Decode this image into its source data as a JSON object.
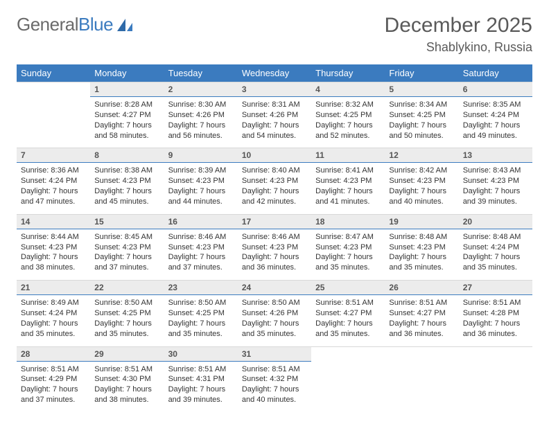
{
  "brand": {
    "part1": "General",
    "part2": "Blue"
  },
  "title": {
    "month": "December 2025",
    "location": "Shablykino, Russia"
  },
  "colors": {
    "header_bg": "#3b7bbf",
    "header_text": "#ffffff",
    "daynum_bg": "#ececec",
    "daynum_border": "#3b7bbf",
    "page_bg": "#ffffff",
    "text": "#333333"
  },
  "dayNames": [
    "Sunday",
    "Monday",
    "Tuesday",
    "Wednesday",
    "Thursday",
    "Friday",
    "Saturday"
  ],
  "startOffset": 1,
  "daysInMonth": 31,
  "days": {
    "1": {
      "sunrise": "8:28 AM",
      "sunset": "4:27 PM",
      "daylight": "7 hours and 58 minutes."
    },
    "2": {
      "sunrise": "8:30 AM",
      "sunset": "4:26 PM",
      "daylight": "7 hours and 56 minutes."
    },
    "3": {
      "sunrise": "8:31 AM",
      "sunset": "4:26 PM",
      "daylight": "7 hours and 54 minutes."
    },
    "4": {
      "sunrise": "8:32 AM",
      "sunset": "4:25 PM",
      "daylight": "7 hours and 52 minutes."
    },
    "5": {
      "sunrise": "8:34 AM",
      "sunset": "4:25 PM",
      "daylight": "7 hours and 50 minutes."
    },
    "6": {
      "sunrise": "8:35 AM",
      "sunset": "4:24 PM",
      "daylight": "7 hours and 49 minutes."
    },
    "7": {
      "sunrise": "8:36 AM",
      "sunset": "4:24 PM",
      "daylight": "7 hours and 47 minutes."
    },
    "8": {
      "sunrise": "8:38 AM",
      "sunset": "4:23 PM",
      "daylight": "7 hours and 45 minutes."
    },
    "9": {
      "sunrise": "8:39 AM",
      "sunset": "4:23 PM",
      "daylight": "7 hours and 44 minutes."
    },
    "10": {
      "sunrise": "8:40 AM",
      "sunset": "4:23 PM",
      "daylight": "7 hours and 42 minutes."
    },
    "11": {
      "sunrise": "8:41 AM",
      "sunset": "4:23 PM",
      "daylight": "7 hours and 41 minutes."
    },
    "12": {
      "sunrise": "8:42 AM",
      "sunset": "4:23 PM",
      "daylight": "7 hours and 40 minutes."
    },
    "13": {
      "sunrise": "8:43 AM",
      "sunset": "4:23 PM",
      "daylight": "7 hours and 39 minutes."
    },
    "14": {
      "sunrise": "8:44 AM",
      "sunset": "4:23 PM",
      "daylight": "7 hours and 38 minutes."
    },
    "15": {
      "sunrise": "8:45 AM",
      "sunset": "4:23 PM",
      "daylight": "7 hours and 37 minutes."
    },
    "16": {
      "sunrise": "8:46 AM",
      "sunset": "4:23 PM",
      "daylight": "7 hours and 37 minutes."
    },
    "17": {
      "sunrise": "8:46 AM",
      "sunset": "4:23 PM",
      "daylight": "7 hours and 36 minutes."
    },
    "18": {
      "sunrise": "8:47 AM",
      "sunset": "4:23 PM",
      "daylight": "7 hours and 35 minutes."
    },
    "19": {
      "sunrise": "8:48 AM",
      "sunset": "4:23 PM",
      "daylight": "7 hours and 35 minutes."
    },
    "20": {
      "sunrise": "8:48 AM",
      "sunset": "4:24 PM",
      "daylight": "7 hours and 35 minutes."
    },
    "21": {
      "sunrise": "8:49 AM",
      "sunset": "4:24 PM",
      "daylight": "7 hours and 35 minutes."
    },
    "22": {
      "sunrise": "8:50 AM",
      "sunset": "4:25 PM",
      "daylight": "7 hours and 35 minutes."
    },
    "23": {
      "sunrise": "8:50 AM",
      "sunset": "4:25 PM",
      "daylight": "7 hours and 35 minutes."
    },
    "24": {
      "sunrise": "8:50 AM",
      "sunset": "4:26 PM",
      "daylight": "7 hours and 35 minutes."
    },
    "25": {
      "sunrise": "8:51 AM",
      "sunset": "4:27 PM",
      "daylight": "7 hours and 35 minutes."
    },
    "26": {
      "sunrise": "8:51 AM",
      "sunset": "4:27 PM",
      "daylight": "7 hours and 36 minutes."
    },
    "27": {
      "sunrise": "8:51 AM",
      "sunset": "4:28 PM",
      "daylight": "7 hours and 36 minutes."
    },
    "28": {
      "sunrise": "8:51 AM",
      "sunset": "4:29 PM",
      "daylight": "7 hours and 37 minutes."
    },
    "29": {
      "sunrise": "8:51 AM",
      "sunset": "4:30 PM",
      "daylight": "7 hours and 38 minutes."
    },
    "30": {
      "sunrise": "8:51 AM",
      "sunset": "4:31 PM",
      "daylight": "7 hours and 39 minutes."
    },
    "31": {
      "sunrise": "8:51 AM",
      "sunset": "4:32 PM",
      "daylight": "7 hours and 40 minutes."
    }
  },
  "labels": {
    "sunrise": "Sunrise:",
    "sunset": "Sunset:",
    "daylight": "Daylight:"
  }
}
